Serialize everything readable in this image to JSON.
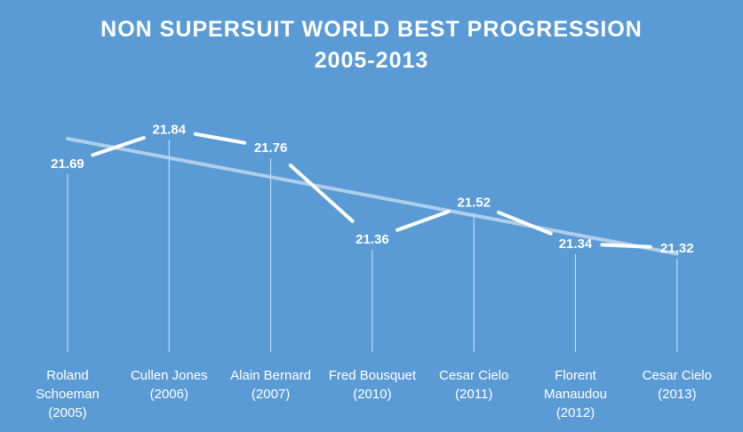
{
  "chart_data": {
    "type": "line",
    "title_lines": [
      "NON SUPERSUIT WORLD BEST PROGRESSION",
      "2005-2013"
    ],
    "categories": [
      [
        "Roland",
        "Schoeman",
        "(2005)"
      ],
      [
        "Cullen Jones",
        "(2006)"
      ],
      [
        "Alain Bernard",
        "(2007)"
      ],
      [
        "Fred Bousquet",
        "(2010)"
      ],
      [
        "Cesar Cielo",
        "(2011)"
      ],
      [
        "Florent",
        "Manaudou",
        "(2012)"
      ],
      [
        "Cesar Cielo",
        "(2013)"
      ]
    ],
    "series": [
      {
        "values": [
          21.69,
          21.84,
          21.76,
          21.36,
          21.52,
          21.34,
          21.32
        ],
        "labels": [
          "21.69",
          "21.84",
          "21.76",
          "21.36",
          "21.52",
          "21.34",
          "21.32"
        ],
        "color": "#ffffff"
      }
    ],
    "trendline": {
      "type": "linear",
      "color": "#bdd7ee"
    },
    "ylim": [
      21.0,
      22.0
    ],
    "grid": false,
    "drop_lines": true,
    "legend": "none",
    "colors": {
      "background": "#5b9bd5",
      "line": "#ffffff",
      "trend": "#bdd7ee"
    }
  }
}
